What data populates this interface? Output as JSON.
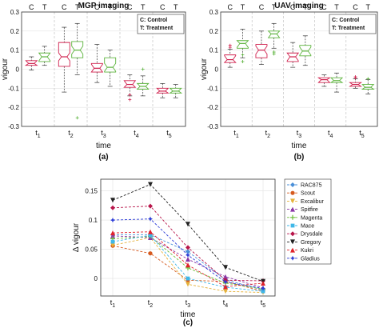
{
  "colors": {
    "control": "#d0214e",
    "treatment": "#5cb33c",
    "median_control": "#d0214e",
    "median_treatment": "#5cb33c"
  },
  "chart_data": [
    {
      "type": "box",
      "title": "MGP imaging",
      "panel_label": "(a)",
      "xlabel": "time",
      "ylabel": "vigour",
      "ylim": [
        -0.3,
        0.3
      ],
      "yticks": [
        "0.3",
        "0.2",
        "0.1",
        "0",
        "-0.1",
        "-0.2",
        "-0.3"
      ],
      "group_labels": [
        "C",
        "T"
      ],
      "legend": {
        "line1": "C: Control",
        "line2": "T: Treatment"
      },
      "time_ticks": [
        {
          "t": "t",
          "sub": "1"
        },
        {
          "t": "t",
          "sub": "2"
        },
        {
          "t": "t",
          "sub": "3"
        },
        {
          "t": "t",
          "sub": "4"
        },
        {
          "t": "t",
          "sub": "5"
        }
      ],
      "boxes": [
        [
          {
            "wl": -0.005,
            "q1": 0.02,
            "med": 0.03,
            "q3": 0.045,
            "wh": 0.065,
            "out": []
          },
          {
            "wl": 0.02,
            "q1": 0.04,
            "med": 0.065,
            "q3": 0.085,
            "wh": 0.12,
            "out": []
          }
        ],
        [
          {
            "wl": -0.12,
            "q1": 0.015,
            "med": 0.065,
            "q3": 0.14,
            "wh": 0.22,
            "out": []
          },
          {
            "wl": -0.03,
            "q1": 0.06,
            "med": 0.1,
            "q3": 0.145,
            "wh": 0.24,
            "out": [
              -0.255
            ]
          }
        ],
        [
          {
            "wl": -0.07,
            "q1": -0.015,
            "med": 0.005,
            "q3": 0.03,
            "wh": 0.13,
            "out": []
          },
          {
            "wl": -0.09,
            "q1": -0.015,
            "med": 0.01,
            "q3": 0.06,
            "wh": 0.1,
            "out": []
          }
        ],
        [
          {
            "wl": -0.14,
            "q1": -0.095,
            "med": -0.08,
            "q3": -0.06,
            "wh": -0.03,
            "out": [
              -0.16,
              -0.135
            ]
          },
          {
            "wl": -0.14,
            "q1": -0.105,
            "med": -0.09,
            "q3": -0.075,
            "wh": -0.035,
            "out": [
              0.0
            ]
          }
        ],
        [
          {
            "wl": -0.15,
            "q1": -0.125,
            "med": -0.115,
            "q3": -0.1,
            "wh": -0.075,
            "out": []
          },
          {
            "wl": -0.15,
            "q1": -0.125,
            "med": -0.115,
            "q3": -0.1,
            "wh": -0.08,
            "out": []
          }
        ]
      ]
    },
    {
      "type": "box",
      "title": "UAV imaging",
      "panel_label": "(b)",
      "xlabel": "time",
      "ylabel": "vigour",
      "ylim": [
        -0.3,
        0.3
      ],
      "yticks": [
        "0.3",
        "0.2",
        "0.1",
        "0",
        "-0.1",
        "-0.2",
        "-0.3"
      ],
      "group_labels": [
        "C",
        "T"
      ],
      "legend": {
        "line1": "C: Control",
        "line2": "T: Treatment"
      },
      "time_ticks": [
        {
          "t": "t",
          "sub": "1"
        },
        {
          "t": "t",
          "sub": "2"
        },
        {
          "t": "t",
          "sub": "3"
        },
        {
          "t": "t",
          "sub": "4"
        },
        {
          "t": "t",
          "sub": "5"
        }
      ],
      "boxes": [
        [
          {
            "wl": 0.01,
            "q1": 0.035,
            "med": 0.05,
            "q3": 0.075,
            "wh": 0.105,
            "out": [
              0.115,
              0.125
            ]
          },
          {
            "wl": 0.06,
            "q1": 0.11,
            "med": 0.135,
            "q3": 0.15,
            "wh": 0.21,
            "out": [
              0.04,
              0.075
            ]
          }
        ],
        [
          {
            "wl": 0.025,
            "q1": 0.06,
            "med": 0.1,
            "q3": 0.13,
            "wh": 0.2,
            "out": []
          },
          {
            "wl": 0.11,
            "q1": 0.165,
            "med": 0.185,
            "q3": 0.2,
            "wh": 0.24,
            "out": [
              0.08,
              0.09
            ]
          }
        ],
        [
          {
            "wl": 0.01,
            "q1": 0.04,
            "med": 0.065,
            "q3": 0.085,
            "wh": 0.14,
            "out": []
          },
          {
            "wl": 0.02,
            "q1": 0.07,
            "med": 0.095,
            "q3": 0.125,
            "wh": 0.175,
            "out": []
          }
        ],
        [
          {
            "wl": -0.09,
            "q1": -0.07,
            "med": -0.055,
            "q3": -0.045,
            "wh": -0.03,
            "out": []
          },
          {
            "wl": -0.12,
            "q1": -0.07,
            "med": -0.06,
            "q3": -0.045,
            "wh": -0.02,
            "out": []
          }
        ],
        [
          {
            "wl": -0.1,
            "q1": -0.09,
            "med": -0.08,
            "q3": -0.07,
            "wh": -0.05,
            "out": [
              -0.045,
              -0.04
            ]
          },
          {
            "wl": -0.13,
            "q1": -0.105,
            "med": -0.095,
            "q3": -0.08,
            "wh": -0.055,
            "out": [
              -0.05
            ]
          }
        ]
      ]
    },
    {
      "type": "line",
      "panel_label": "(c)",
      "xlabel": "time",
      "ylabel": "Δ vigour",
      "ylim": [
        -0.03,
        0.17
      ],
      "yticks": [
        "0.15",
        "0.1",
        "0.05",
        "0"
      ],
      "x": [
        1,
        2,
        3,
        4,
        5
      ],
      "xtick_labels": [
        {
          "t": "t",
          "sub": "1"
        },
        {
          "t": "t",
          "sub": "2"
        },
        {
          "t": "t",
          "sub": "3"
        },
        {
          "t": "t",
          "sub": "4"
        },
        {
          "t": "t",
          "sub": "5"
        }
      ],
      "series": [
        {
          "name": "RAC875",
          "color": "#4a8fd8",
          "marker": "diamond",
          "values": [
            0.075,
            0.075,
            0.046,
            -0.002,
            -0.02
          ]
        },
        {
          "name": "Scout",
          "color": "#d65a1f",
          "marker": "circle",
          "values": [
            0.056,
            0.043,
            -0.003,
            -0.005,
            -0.022
          ]
        },
        {
          "name": "Excalibur",
          "color": "#e5b23c",
          "marker": "triangle-down",
          "values": [
            0.057,
            0.07,
            -0.01,
            -0.022,
            -0.024
          ]
        },
        {
          "name": "Spitfire",
          "color": "#8a36a6",
          "marker": "triangle-up",
          "values": [
            0.073,
            0.07,
            0.033,
            0.003,
            -0.016
          ]
        },
        {
          "name": "Magenta",
          "color": "#6fbf3b",
          "marker": "plus",
          "values": [
            0.068,
            0.072,
            0.018,
            -0.008,
            -0.018
          ]
        },
        {
          "name": "Mace",
          "color": "#3eb7e8",
          "marker": "square",
          "values": [
            0.063,
            0.074,
            0.0,
            -0.015,
            -0.022
          ]
        },
        {
          "name": "Drysdale",
          "color": "#b8154a",
          "marker": "diamond",
          "values": [
            0.121,
            0.124,
            0.053,
            -0.003,
            -0.004
          ]
        },
        {
          "name": "Gregory",
          "color": "#222222",
          "marker": "triangle-down",
          "values": [
            0.134,
            0.161,
            0.093,
            0.019,
            -0.005
          ]
        },
        {
          "name": "Kukri",
          "color": "#e0222b",
          "marker": "triangle-up",
          "values": [
            0.078,
            0.08,
            0.023,
            -0.014,
            -0.008
          ]
        },
        {
          "name": "Gladius",
          "color": "#2d3dd8",
          "marker": "star",
          "values": [
            0.1,
            0.102,
            0.04,
            -0.006,
            -0.017
          ]
        }
      ]
    }
  ]
}
